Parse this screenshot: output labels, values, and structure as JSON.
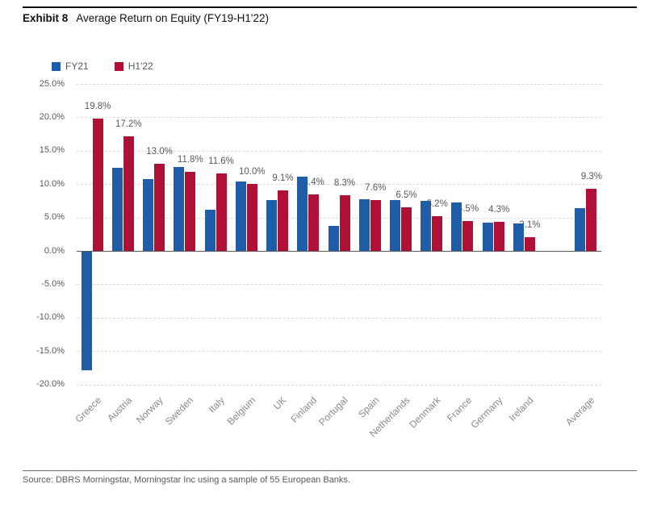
{
  "page": {
    "exhibit_label": "Exhibit 8",
    "title": "Average Return on Equity (FY19-H1'22)",
    "source": "Source: DBRS Morningstar, Morningstar Inc using a sample of 55 European Banks."
  },
  "colors": {
    "fy21_blue": "#1F5DA8",
    "h122_red": "#B00F36",
    "gridline": "#D9D9D9",
    "zero_line": "#595959",
    "tick_text": "#595959",
    "data_label_text": "#595959",
    "category_text": "#8A8A8A"
  },
  "legend": {
    "position": "top-left",
    "items": [
      {
        "label": "FY21",
        "color": "#1F5DA8"
      },
      {
        "label": "H1'22",
        "color": "#B00F36"
      }
    ]
  },
  "chart_data": {
    "type": "bar",
    "title": "Average Return on Equity (FY19-H1'22)",
    "categories": [
      "Greece",
      "Austria",
      "Norway",
      "Sweden",
      "Italy",
      "Belgium",
      "UK",
      "Finland",
      "Portugal",
      "Spain",
      "Netherlands",
      "Denmark",
      "France",
      "Germany",
      "Ireland",
      "Average"
    ],
    "series": [
      {
        "name": "FY21",
        "color": "#1F5DA8",
        "values": [
          -17.9,
          12.4,
          10.7,
          12.6,
          6.2,
          10.4,
          7.6,
          11.1,
          3.8,
          7.7,
          7.6,
          7.5,
          7.2,
          4.2,
          4.1,
          6.4
        ],
        "data_labels": null
      },
      {
        "name": "H1'22",
        "color": "#B00F36",
        "values": [
          19.8,
          17.2,
          13.0,
          11.8,
          11.6,
          10.0,
          9.1,
          8.4,
          8.3,
          7.6,
          6.5,
          5.2,
          4.5,
          4.3,
          2.1,
          9.3
        ],
        "data_labels": [
          "19.8%",
          "17.2%",
          "13.0%",
          "11.8%",
          "11.6%",
          "10.0%",
          "9.1%",
          "8.4%",
          "8.3%",
          "7.6%",
          "6.5%",
          "5.2%",
          "4.5%",
          "4.3%",
          "2.1%",
          "9.3%"
        ]
      }
    ],
    "xlabel": "",
    "ylabel": "",
    "ylim": [
      -20,
      25
    ],
    "y_tick_step": 5,
    "y_tick_labels": [
      "25.0%",
      "20.0%",
      "15.0%",
      "10.0%",
      "5.0%",
      "0.0%",
      "-5.0%",
      "-10.0%",
      "-15.0%",
      "-20.0%"
    ],
    "grid": "horizontal-dashed",
    "legend_position": "top-left",
    "gap_before_last_category": true
  }
}
